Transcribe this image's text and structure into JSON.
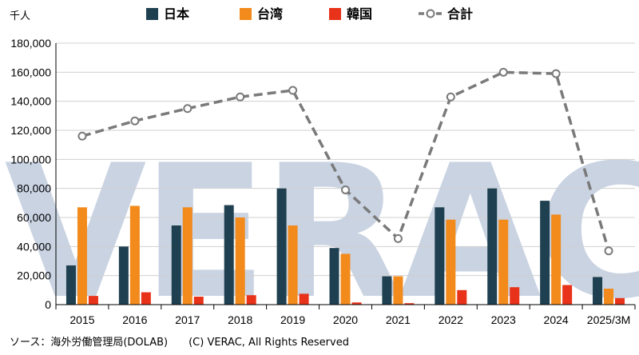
{
  "unit_label": "千人",
  "watermark": "VERAC",
  "source_note": "ソース：海外労働管理局(DOLAB)　　(C) VERAC,  All Rights Reserved",
  "colors": {
    "japan": "#1f4050",
    "taiwan": "#f28a1c",
    "korea": "#e8321a",
    "total": "#7a7a7a"
  },
  "chart_data": {
    "type": "bar",
    "categories": [
      "2015",
      "2016",
      "2017",
      "2018",
      "2019",
      "2020",
      "2021",
      "2022",
      "2023",
      "2024",
      "2025/3M"
    ],
    "ylim": [
      0,
      180000
    ],
    "yticks": [
      "0",
      "20,000",
      "40,000",
      "60,000",
      "80,000",
      "100,000",
      "120,000",
      "140,000",
      "160,000",
      "180,000"
    ],
    "grid": true,
    "legend_position": "top",
    "series": [
      {
        "name": "日本",
        "type": "bar",
        "values": [
          27000,
          40000,
          54500,
          68500,
          80000,
          39000,
          19500,
          67000,
          80000,
          71500,
          19000
        ]
      },
      {
        "name": "台湾",
        "type": "bar",
        "values": [
          67000,
          68000,
          67000,
          60000,
          54500,
          35000,
          19500,
          58500,
          58500,
          62000,
          11000
        ]
      },
      {
        "name": "韓国",
        "type": "bar",
        "values": [
          6000,
          8500,
          5500,
          6500,
          7500,
          1500,
          1000,
          10000,
          12000,
          13500,
          4500
        ]
      },
      {
        "name": "合計",
        "type": "line",
        "values": [
          116000,
          126500,
          135000,
          143000,
          147500,
          79000,
          45500,
          143000,
          160000,
          159000,
          37000
        ]
      }
    ]
  }
}
